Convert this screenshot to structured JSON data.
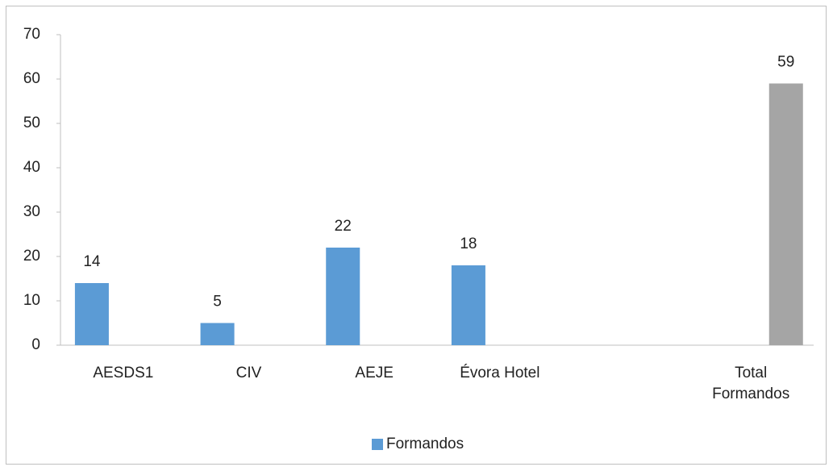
{
  "chart_data": {
    "type": "bar",
    "categories": [
      "AESDS1",
      "CIV",
      "AEJE",
      "Évora Hotel",
      null,
      "Total Formandos"
    ],
    "series": [
      {
        "name": "Formandos",
        "color": "#5b9bd5",
        "values": [
          14,
          5,
          22,
          18,
          null,
          null
        ]
      },
      {
        "color": "#a5a5a5",
        "values": [
          null,
          null,
          null,
          null,
          null,
          59
        ]
      }
    ],
    "ylim": [
      0,
      70
    ],
    "yticks": [
      0,
      10,
      20,
      30,
      40,
      50,
      60,
      70
    ],
    "grid": false,
    "legend": "bottom"
  }
}
